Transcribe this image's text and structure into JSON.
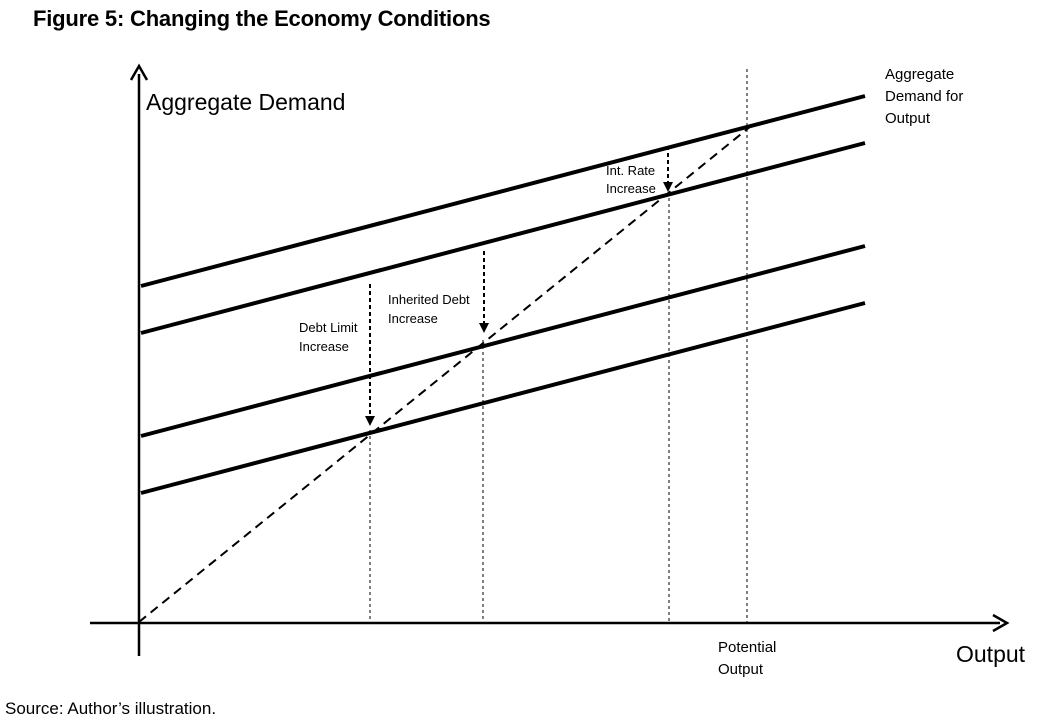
{
  "title": "Figure 5: Changing the Economy Conditions",
  "source": "Source: Author’s illustration.",
  "axes": {
    "y_label": "Aggregate Demand",
    "x_label": "Output"
  },
  "curve_label": [
    "Aggregate",
    "Demand for",
    "Output"
  ],
  "annotations": {
    "int_rate": [
      "Int. Rate",
      "Increase"
    ],
    "inherited_debt": [
      "Inherited Debt",
      "Increase"
    ],
    "debt_limit": [
      "Debt Limit",
      "Increase"
    ],
    "potential_output": [
      "Potential",
      "Output"
    ]
  }
}
